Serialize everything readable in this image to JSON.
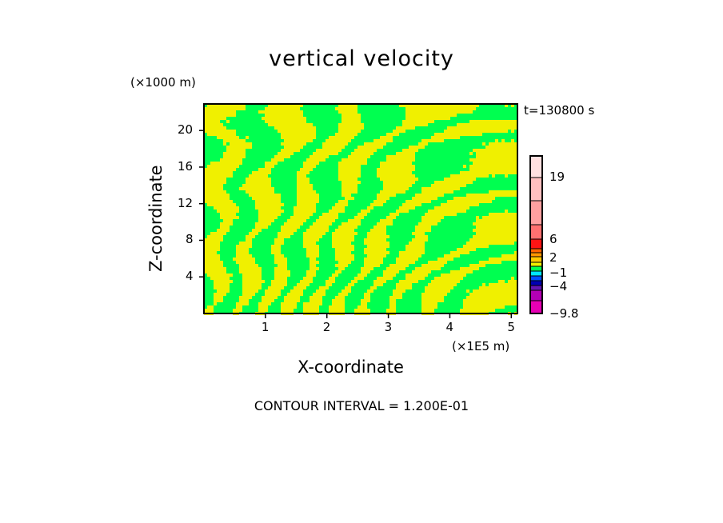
{
  "chart_data": {
    "type": "heatmap",
    "title": "vertical velocity",
    "xlabel": "X-coordinate",
    "ylabel": "Z-coordinate",
    "x_unit": "(×1E5 m)",
    "y_unit": "(×1000 m)",
    "time_label": "t=130800 s",
    "contour_interval": "CONTOUR INTERVAL = 1.200E-01",
    "xlim": [
      0,
      5.1
    ],
    "ylim": [
      0,
      22.9
    ],
    "xticks": [
      "1",
      "2",
      "3",
      "4",
      "5"
    ],
    "xtick_values": [
      1,
      2,
      3,
      4,
      5
    ],
    "yticks": [
      "4",
      "8",
      "12",
      "16",
      "20"
    ],
    "ytick_values": [
      4,
      8,
      12,
      16,
      20
    ],
    "colorbar": {
      "labels": [
        "19",
        "6",
        "2",
        "−1",
        "−4",
        "−9.8"
      ],
      "label_levels": [
        19,
        6,
        2,
        -1,
        -4,
        -9.8
      ],
      "colors": [
        "#ffe0e0",
        "#ffc0c0",
        "#ffa0a0",
        "#ff7070",
        "#ff1414",
        "#ff6400",
        "#ff9600",
        "#ffc800",
        "#f0f000",
        "#00ff50",
        "#00e6ff",
        "#0050ff",
        "#0000b4",
        "#6414b4",
        "#b400b4",
        "#e600b4"
      ]
    },
    "field_colors": {
      "positive": "#f0f000",
      "negative": "#00ff50"
    },
    "field_note_values": [
      "-1 to 0",
      "0 to 1"
    ]
  }
}
